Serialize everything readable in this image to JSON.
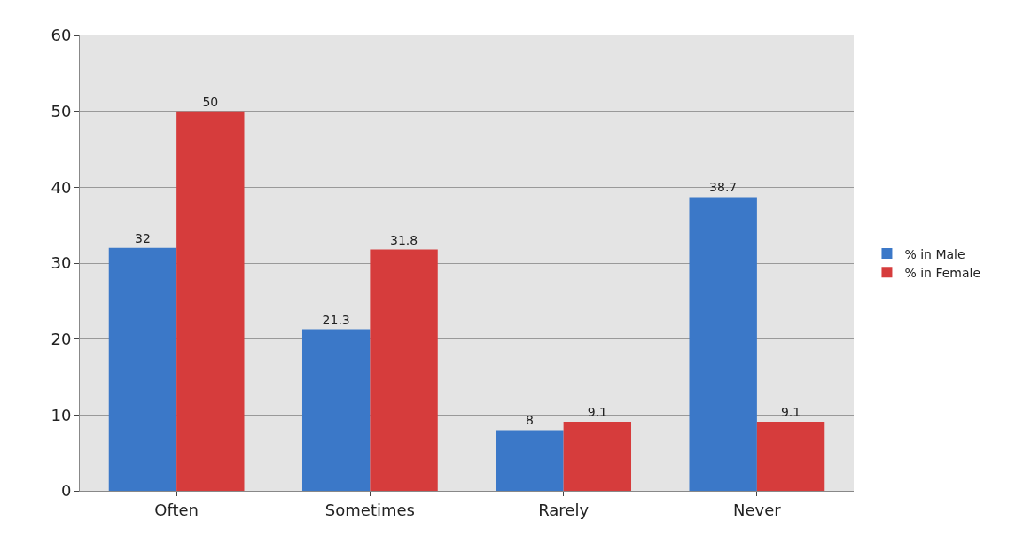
{
  "chart_data": {
    "type": "bar",
    "categories": [
      "Often",
      "Sometimes",
      "Rarely",
      "Never"
    ],
    "series": [
      {
        "name": "% in Male",
        "color": "#3b78c8",
        "values": [
          32,
          21.3,
          8,
          38.7
        ]
      },
      {
        "name": "% in Female",
        "color": "#d63c3c",
        "values": [
          50,
          31.8,
          9.1,
          9.1
        ]
      }
    ],
    "ylim": [
      0,
      60
    ],
    "yticks": [
      0,
      10,
      20,
      30,
      40,
      50,
      60
    ],
    "grid": "y",
    "legend": "right",
    "data_labels": true
  }
}
